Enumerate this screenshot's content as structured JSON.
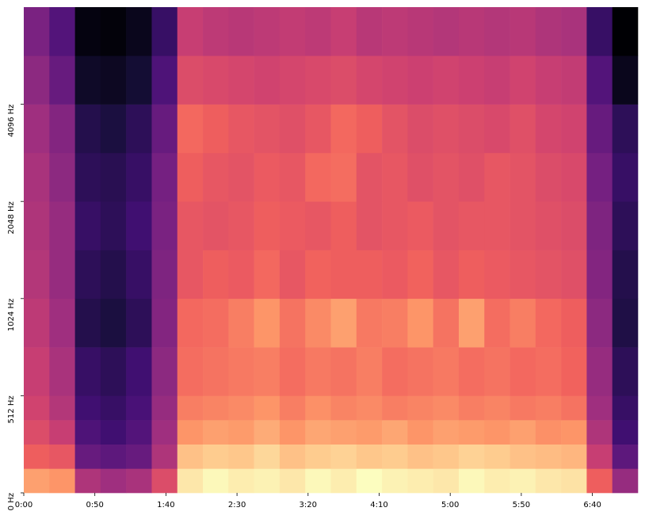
{
  "chart_data": {
    "type": "spectrogram",
    "xlim": [
      0,
      432
    ],
    "xticks": [
      {
        "value": 0,
        "label": "0:00"
      },
      {
        "value": 50,
        "label": "0:50"
      },
      {
        "value": 100,
        "label": "1:40"
      },
      {
        "value": 150,
        "label": "2:30"
      },
      {
        "value": 200,
        "label": "3:20"
      },
      {
        "value": 250,
        "label": "4:10"
      },
      {
        "value": 300,
        "label": "5:00"
      },
      {
        "value": 350,
        "label": "5:50"
      },
      {
        "value": 400,
        "label": "6:40"
      }
    ],
    "ylim": [
      0,
      8192
    ],
    "yscale": "symlog",
    "linthresh": 512,
    "yticks": [
      {
        "value": 0,
        "label": "0 Hz"
      },
      {
        "value": 512,
        "label": "512 Hz"
      },
      {
        "value": 1024,
        "label": "1024 Hz"
      },
      {
        "value": 2048,
        "label": "2048 Hz"
      },
      {
        "value": 4096,
        "label": "4096 Hz"
      }
    ],
    "colormap": [
      "#000004",
      "#180f3d",
      "#440f76",
      "#721f81",
      "#9e2f7f",
      "#cd4071",
      "#f1605d",
      "#fd9668",
      "#feca8d",
      "#fcfdbf"
    ],
    "x_edges": [
      0,
      18,
      36,
      54,
      72,
      90,
      108,
      126,
      144,
      162,
      180,
      198,
      216,
      234,
      252,
      270,
      288,
      306,
      324,
      342,
      360,
      378,
      396,
      414,
      432
    ],
    "y_edges": [
      0,
      128,
      256,
      384,
      512,
      724,
      1024,
      1448,
      2048,
      2896,
      4096,
      5793,
      8192
    ],
    "values": [
      [
        72,
        70,
        45,
        42,
        44,
        55,
        85,
        88,
        86,
        87,
        85,
        88,
        86,
        89,
        87,
        86,
        85,
        88,
        86,
        87,
        85,
        84,
        60,
        40
      ],
      [
        60,
        58,
        30,
        28,
        30,
        45,
        78,
        80,
        79,
        82,
        78,
        80,
        81,
        79,
        80,
        78,
        79,
        81,
        80,
        78,
        77,
        76,
        50,
        28
      ],
      [
        55,
        50,
        25,
        22,
        26,
        42,
        70,
        72,
        71,
        74,
        70,
        73,
        72,
        71,
        73,
        70,
        72,
        71,
        70,
        72,
        69,
        70,
        45,
        22
      ],
      [
        52,
        46,
        22,
        20,
        24,
        40,
        66,
        67,
        68,
        70,
        66,
        69,
        67,
        68,
        66,
        67,
        68,
        66,
        67,
        65,
        66,
        64,
        42,
        20
      ],
      [
        50,
        44,
        20,
        18,
        22,
        38,
        63,
        64,
        65,
        66,
        63,
        65,
        64,
        66,
        63,
        64,
        65,
        63,
        64,
        62,
        63,
        61,
        40,
        18
      ],
      [
        48,
        42,
        16,
        14,
        18,
        36,
        62,
        63,
        66,
        70,
        64,
        68,
        72,
        65,
        66,
        70,
        64,
        72,
        63,
        66,
        62,
        60,
        38,
        15
      ],
      [
        46,
        40,
        18,
        16,
        20,
        35,
        58,
        60,
        59,
        62,
        58,
        61,
        60,
        60,
        59,
        61,
        58,
        60,
        59,
        58,
        57,
        56,
        36,
        16
      ],
      [
        45,
        40,
        20,
        18,
        22,
        34,
        58,
        57,
        58,
        60,
        59,
        58,
        60,
        57,
        58,
        59,
        57,
        58,
        58,
        57,
        56,
        55,
        35,
        18
      ],
      [
        44,
        38,
        18,
        17,
        20,
        33,
        60,
        58,
        57,
        59,
        58,
        62,
        63,
        57,
        58,
        56,
        57,
        56,
        58,
        57,
        55,
        54,
        33,
        20
      ],
      [
        42,
        36,
        16,
        14,
        18,
        30,
        62,
        60,
        58,
        57,
        56,
        58,
        62,
        60,
        57,
        55,
        56,
        55,
        54,
        56,
        53,
        52,
        30,
        18
      ],
      [
        38,
        30,
        10,
        9,
        12,
        25,
        55,
        54,
        53,
        52,
        53,
        54,
        55,
        53,
        52,
        51,
        52,
        51,
        50,
        52,
        50,
        49,
        26,
        8
      ],
      [
        34,
        26,
        6,
        5,
        8,
        20,
        50,
        48,
        47,
        48,
        49,
        48,
        50,
        47,
        48,
        47,
        46,
        47,
        46,
        47,
        45,
        44,
        20,
        4
      ]
    ]
  }
}
